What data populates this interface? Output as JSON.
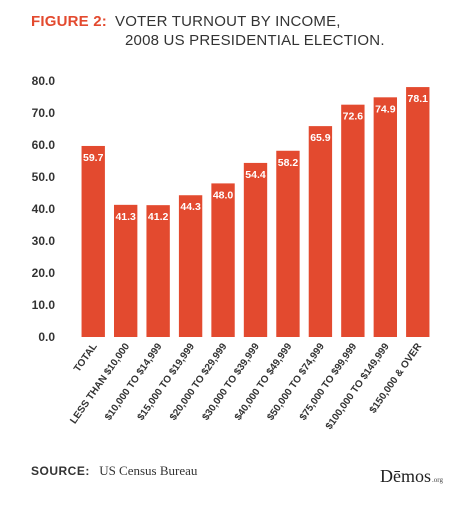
{
  "figure": {
    "label": "FIGURE 2:",
    "title_line1": "VOTER TURNOUT BY INCOME,",
    "title_line2": "2008 US PRESIDENTIAL ELECTION."
  },
  "source": {
    "label": "SOURCE:",
    "text": "US Census Bureau"
  },
  "logo": {
    "text": "Dēmos",
    "suffix": ".org"
  },
  "colors": {
    "bar": "#e34a2f",
    "accent": "#e34a2f",
    "axis_text": "#333333",
    "value_label": "#ffffff"
  },
  "chart_data": {
    "type": "bar",
    "title": "VOTER TURNOUT BY INCOME, 2008 US PRESIDENTIAL ELECTION.",
    "xlabel": "",
    "ylabel": "",
    "ylim": [
      0,
      80
    ],
    "yticks": [
      0,
      10,
      20,
      30,
      40,
      50,
      60,
      70,
      80
    ],
    "ytick_labels": [
      "0.0",
      "10.0",
      "20.0",
      "30.0",
      "40.0",
      "50.0",
      "60.0",
      "70.0",
      "80.0"
    ],
    "grid": false,
    "legend": "none",
    "categories": [
      "TOTAL",
      "LESS THAN $10,000",
      "$10,000 TO $14,999",
      "$15,000 TO $19,999",
      "$20,000 TO $29,999",
      "$30,000 TO $39,999",
      "$40,000 TO $49,999",
      "$50,000 TO $74,999",
      "$75,000 TO $99,999",
      "$100,000 TO $149,999",
      "$150,000 & OVER"
    ],
    "values": [
      59.7,
      41.3,
      41.2,
      44.3,
      48.0,
      54.4,
      58.2,
      65.9,
      72.6,
      74.9,
      78.1
    ],
    "value_labels": [
      "59.7",
      "41.3",
      "41.2",
      "44.3",
      "48.0",
      "54.4",
      "58.2",
      "65.9",
      "72.6",
      "74.9",
      "78.1"
    ]
  }
}
